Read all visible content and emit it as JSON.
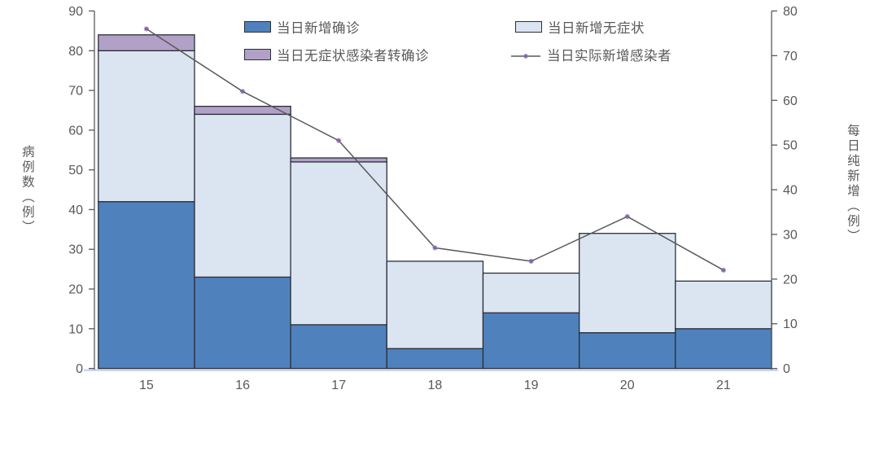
{
  "chart_data": {
    "type": "bar",
    "subtype": "stacked-bars-with-line-overlay",
    "categories": [
      "15",
      "16",
      "17",
      "18",
      "19",
      "20",
      "21"
    ],
    "series": [
      {
        "key": "confirmed",
        "name": "当日新增确诊",
        "type": "bar",
        "color": "#4f81bd",
        "values": [
          42,
          23,
          11,
          5,
          14,
          9,
          10
        ]
      },
      {
        "key": "asymptomatic",
        "name": "当日新增无症状",
        "type": "bar",
        "color": "#dbe5f1",
        "values": [
          38,
          41,
          41,
          22,
          10,
          25,
          12
        ]
      },
      {
        "key": "converted",
        "name": "当日无症状感染者转确诊",
        "type": "bar",
        "color": "#b2a1c7",
        "values": [
          4,
          2,
          1,
          0,
          0,
          0,
          0
        ]
      },
      {
        "key": "actual-new",
        "name": "当日实际新增感染者",
        "type": "line",
        "axis": "right",
        "color": "#595959",
        "marker_color": "#7e63a8",
        "values": [
          76,
          62,
          51,
          27,
          24,
          34,
          22
        ]
      }
    ],
    "left_axis": {
      "label": "病例数（例）",
      "min": 0,
      "max": 90,
      "tick_step": 10,
      "ticks": [
        0,
        10,
        20,
        30,
        40,
        50,
        60,
        70,
        80,
        90
      ]
    },
    "right_axis": {
      "label": "每日纯新增（例）",
      "min": 0,
      "max": 80,
      "tick_step": 10,
      "ticks": [
        0,
        10,
        20,
        30,
        40,
        50,
        60,
        70,
        80
      ]
    },
    "grid": false,
    "legend_position": "top-center",
    "colors": {
      "axis_line": "#595959",
      "axis_text": "#595959",
      "bar_border": "#2b2e38",
      "baseline_strip": "#c9d6ec"
    }
  }
}
